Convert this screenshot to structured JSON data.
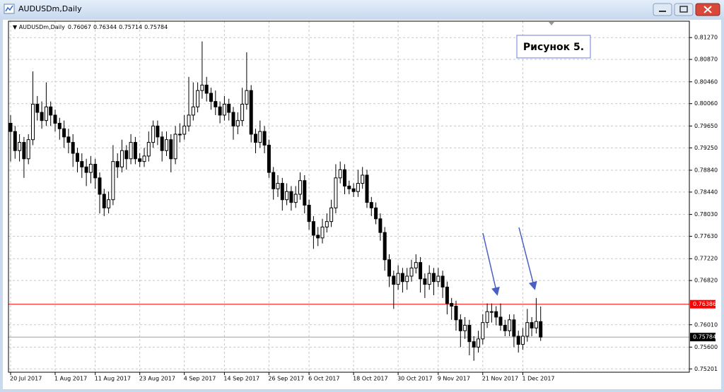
{
  "chart_data": {
    "type": "candlestick",
    "symbol": "AUDUSDm,Daily",
    "annotation": "Рисунок 5.",
    "ylim": [
      0.7514,
      0.8157
    ],
    "yticks": [
      {
        "value": 0.8127,
        "label": "0.81270"
      },
      {
        "value": 0.8087,
        "label": "0.80870"
      },
      {
        "value": 0.8046,
        "label": "0.80460"
      },
      {
        "value": 0.8006,
        "label": "0.80060"
      },
      {
        "value": 0.7965,
        "label": "0.79650"
      },
      {
        "value": 0.7925,
        "label": "0.79250"
      },
      {
        "value": 0.7884,
        "label": "0.78840"
      },
      {
        "value": 0.7844,
        "label": "0.78440"
      },
      {
        "value": 0.7803,
        "label": "0.78030"
      },
      {
        "value": 0.7763,
        "label": "0.77630"
      },
      {
        "value": 0.7722,
        "label": "0.77220"
      },
      {
        "value": 0.7682,
        "label": "0.76820"
      },
      {
        "value": 0.7601,
        "label": "0.76010"
      },
      {
        "value": 0.756,
        "label": "0.75600"
      },
      {
        "value": 0.75201,
        "label": "0.75201"
      }
    ],
    "grid": true,
    "up_color": "#ffffff",
    "down_color": "#000000",
    "outline_color": "#000000",
    "hline": {
      "value": 0.76386,
      "color": "#ff0000"
    },
    "categories": [
      "20 Jul 2017",
      null,
      null,
      null,
      null,
      null,
      null,
      null,
      null,
      null,
      "1 Aug 2017",
      null,
      null,
      null,
      null,
      null,
      null,
      null,
      null,
      "11 Aug 2017",
      null,
      null,
      null,
      null,
      null,
      null,
      null,
      null,
      null,
      "23 Aug 2017",
      null,
      null,
      null,
      null,
      null,
      null,
      null,
      null,
      null,
      "4 Sep 2017",
      null,
      null,
      null,
      null,
      null,
      null,
      null,
      null,
      "14 Sep 2017",
      null,
      null,
      null,
      null,
      null,
      null,
      null,
      null,
      null,
      "26 Sep 2017",
      null,
      null,
      null,
      null,
      null,
      null,
      null,
      null,
      "6 Oct 2017",
      null,
      null,
      null,
      null,
      null,
      null,
      null,
      null,
      null,
      "18 Oct 2017",
      null,
      null,
      null,
      null,
      null,
      null,
      null,
      null,
      null,
      "30 Oct 2017",
      null,
      null,
      null,
      null,
      null,
      null,
      null,
      null,
      "9 Nov 2017",
      null,
      null,
      null,
      null,
      null,
      null,
      null,
      null,
      null,
      "21 Nov 2017",
      null,
      null,
      null,
      null,
      null,
      null,
      null,
      null,
      "1 Dec 2017",
      null,
      null,
      null,
      null
    ],
    "ohlc": [
      [
        0.797,
        0.7985,
        0.79,
        0.7955
      ],
      [
        0.7955,
        0.7965,
        0.7905,
        0.792
      ],
      [
        0.792,
        0.795,
        0.79,
        0.7935
      ],
      [
        0.7935,
        0.7945,
        0.787,
        0.7905
      ],
      [
        0.7905,
        0.795,
        0.7895,
        0.794
      ],
      [
        0.794,
        0.8065,
        0.793,
        0.8005
      ],
      [
        0.8005,
        0.802,
        0.7975,
        0.799
      ],
      [
        0.799,
        0.801,
        0.796,
        0.7975
      ],
      [
        0.7975,
        0.8045,
        0.7965,
        0.8
      ],
      [
        0.8,
        0.801,
        0.7965,
        0.7985
      ],
      [
        0.7985,
        0.7995,
        0.7955,
        0.797
      ],
      [
        0.797,
        0.798,
        0.794,
        0.796
      ],
      [
        0.796,
        0.7975,
        0.7925,
        0.7945
      ],
      [
        0.7945,
        0.796,
        0.7915,
        0.7935
      ],
      [
        0.7935,
        0.795,
        0.789,
        0.7915
      ],
      [
        0.7915,
        0.7925,
        0.788,
        0.79
      ],
      [
        0.79,
        0.7915,
        0.787,
        0.789
      ],
      [
        0.789,
        0.7905,
        0.7855,
        0.788
      ],
      [
        0.788,
        0.791,
        0.786,
        0.7895
      ],
      [
        0.7895,
        0.7905,
        0.785,
        0.787
      ],
      [
        0.787,
        0.788,
        0.7805,
        0.784
      ],
      [
        0.784,
        0.785,
        0.78,
        0.7815
      ],
      [
        0.7815,
        0.7845,
        0.7805,
        0.783
      ],
      [
        0.783,
        0.793,
        0.782,
        0.79
      ],
      [
        0.79,
        0.7915,
        0.787,
        0.789
      ],
      [
        0.789,
        0.794,
        0.788,
        0.792
      ],
      [
        0.792,
        0.793,
        0.7885,
        0.7905
      ],
      [
        0.7905,
        0.795,
        0.7895,
        0.7935
      ],
      [
        0.7935,
        0.7945,
        0.7895,
        0.7905
      ],
      [
        0.7905,
        0.7915,
        0.789,
        0.79
      ],
      [
        0.79,
        0.7925,
        0.789,
        0.791
      ],
      [
        0.791,
        0.7955,
        0.79,
        0.7935
      ],
      [
        0.7935,
        0.7975,
        0.7925,
        0.7965
      ],
      [
        0.7965,
        0.7975,
        0.793,
        0.7945
      ],
      [
        0.7945,
        0.7955,
        0.79,
        0.792
      ],
      [
        0.792,
        0.7955,
        0.791,
        0.794
      ],
      [
        0.794,
        0.795,
        0.788,
        0.7905
      ],
      [
        0.7905,
        0.7965,
        0.7895,
        0.795
      ],
      [
        0.795,
        0.797,
        0.7935,
        0.795
      ],
      [
        0.795,
        0.7985,
        0.794,
        0.7965
      ],
      [
        0.7965,
        0.8055,
        0.7955,
        0.7985
      ],
      [
        0.7985,
        0.8045,
        0.7975,
        0.8
      ],
      [
        0.8,
        0.8045,
        0.799,
        0.803
      ],
      [
        0.803,
        0.812,
        0.8015,
        0.804
      ],
      [
        0.804,
        0.8055,
        0.801,
        0.8025
      ],
      [
        0.8025,
        0.8035,
        0.7995,
        0.801
      ],
      [
        0.801,
        0.803,
        0.7985,
        0.8
      ],
      [
        0.8,
        0.801,
        0.797,
        0.7985
      ],
      [
        0.7985,
        0.802,
        0.7975,
        0.8005
      ],
      [
        0.8005,
        0.8015,
        0.7975,
        0.799
      ],
      [
        0.799,
        0.8,
        0.794,
        0.7965
      ],
      [
        0.7965,
        0.799,
        0.795,
        0.7975
      ],
      [
        0.7975,
        0.8035,
        0.7965,
        0.8005
      ],
      [
        0.8005,
        0.81,
        0.7995,
        0.803
      ],
      [
        0.803,
        0.804,
        0.7935,
        0.795
      ],
      [
        0.795,
        0.796,
        0.7915,
        0.7935
      ],
      [
        0.7935,
        0.7975,
        0.7925,
        0.7955
      ],
      [
        0.7955,
        0.7965,
        0.7915,
        0.793
      ],
      [
        0.793,
        0.794,
        0.787,
        0.788
      ],
      [
        0.788,
        0.789,
        0.783,
        0.785
      ],
      [
        0.785,
        0.7875,
        0.7835,
        0.786
      ],
      [
        0.786,
        0.787,
        0.781,
        0.783
      ],
      [
        0.783,
        0.786,
        0.782,
        0.7845
      ],
      [
        0.7845,
        0.7855,
        0.781,
        0.7825
      ],
      [
        0.7825,
        0.7855,
        0.7815,
        0.784
      ],
      [
        0.784,
        0.788,
        0.783,
        0.7865
      ],
      [
        0.7865,
        0.7875,
        0.7805,
        0.782
      ],
      [
        0.782,
        0.783,
        0.7775,
        0.779
      ],
      [
        0.779,
        0.78,
        0.774,
        0.7765
      ],
      [
        0.7765,
        0.778,
        0.7745,
        0.776
      ],
      [
        0.776,
        0.7795,
        0.775,
        0.778
      ],
      [
        0.778,
        0.7805,
        0.777,
        0.779
      ],
      [
        0.779,
        0.783,
        0.778,
        0.7815
      ],
      [
        0.7815,
        0.7895,
        0.7805,
        0.787
      ],
      [
        0.787,
        0.79,
        0.786,
        0.7885
      ],
      [
        0.7885,
        0.7895,
        0.784,
        0.7855
      ],
      [
        0.7855,
        0.7865,
        0.784,
        0.785
      ],
      [
        0.785,
        0.786,
        0.7835,
        0.7845
      ],
      [
        0.7845,
        0.7885,
        0.7835,
        0.786
      ],
      [
        0.786,
        0.789,
        0.785,
        0.7875
      ],
      [
        0.7875,
        0.7885,
        0.7815,
        0.7825
      ],
      [
        0.7825,
        0.7835,
        0.78,
        0.7815
      ],
      [
        0.7815,
        0.7825,
        0.7785,
        0.7795
      ],
      [
        0.7795,
        0.7805,
        0.7755,
        0.777
      ],
      [
        0.777,
        0.778,
        0.77,
        0.772
      ],
      [
        0.772,
        0.773,
        0.767,
        0.769
      ],
      [
        0.769,
        0.77,
        0.763,
        0.7675
      ],
      [
        0.7675,
        0.771,
        0.7665,
        0.7695
      ],
      [
        0.7695,
        0.7705,
        0.766,
        0.768
      ],
      [
        0.768,
        0.7705,
        0.7665,
        0.769
      ],
      [
        0.769,
        0.772,
        0.768,
        0.7705
      ],
      [
        0.7705,
        0.773,
        0.7695,
        0.7715
      ],
      [
        0.7715,
        0.7725,
        0.766,
        0.7685
      ],
      [
        0.7685,
        0.7695,
        0.765,
        0.7675
      ],
      [
        0.7675,
        0.771,
        0.7665,
        0.7695
      ],
      [
        0.7695,
        0.7705,
        0.7655,
        0.768
      ],
      [
        0.768,
        0.7705,
        0.767,
        0.769
      ],
      [
        0.769,
        0.77,
        0.765,
        0.767
      ],
      [
        0.767,
        0.768,
        0.762,
        0.764
      ],
      [
        0.764,
        0.765,
        0.761,
        0.7635
      ],
      [
        0.7635,
        0.7645,
        0.759,
        0.761
      ],
      [
        0.761,
        0.762,
        0.756,
        0.759
      ],
      [
        0.759,
        0.7615,
        0.7575,
        0.76
      ],
      [
        0.76,
        0.761,
        0.7545,
        0.757
      ],
      [
        0.757,
        0.758,
        0.7535,
        0.756
      ],
      [
        0.756,
        0.759,
        0.755,
        0.7575
      ],
      [
        0.7575,
        0.762,
        0.7565,
        0.7605
      ],
      [
        0.7605,
        0.764,
        0.7595,
        0.7625
      ],
      [
        0.7625,
        0.764,
        0.7605,
        0.7625
      ],
      [
        0.7625,
        0.7635,
        0.76,
        0.7615
      ],
      [
        0.7615,
        0.764,
        0.759,
        0.76
      ],
      [
        0.76,
        0.761,
        0.758,
        0.759
      ],
      [
        0.759,
        0.762,
        0.758,
        0.761
      ],
      [
        0.761,
        0.762,
        0.756,
        0.758
      ],
      [
        0.758,
        0.759,
        0.755,
        0.7565
      ],
      [
        0.7565,
        0.7595,
        0.7555,
        0.758
      ],
      [
        0.758,
        0.763,
        0.757,
        0.7605
      ],
      [
        0.7605,
        0.7615,
        0.758,
        0.7595
      ],
      [
        0.7595,
        0.765,
        0.7585,
        0.7607
      ],
      [
        0.76067,
        0.76344,
        0.75714,
        0.75784
      ]
    ]
  }
}
